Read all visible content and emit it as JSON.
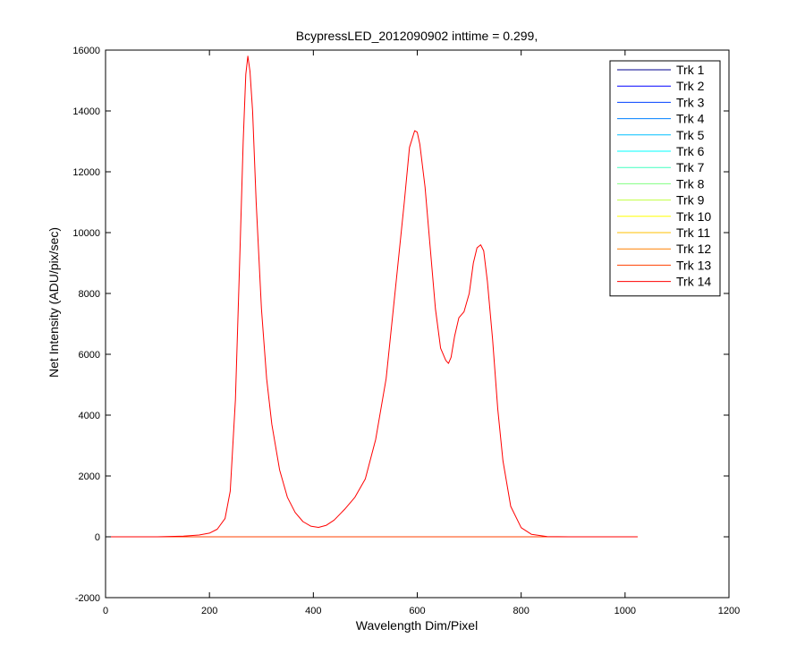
{
  "chart_data": {
    "type": "line",
    "title": "BcypressLED_2012090902 inttime = 0.299,",
    "xlabel": "Wavelength Dim/Pixel",
    "ylabel": "Net Intensity (ADU/pix/sec)",
    "xlim": [
      0,
      1200
    ],
    "ylim": [
      -2000,
      16000
    ],
    "xticks": [
      "0",
      "200",
      "400",
      "600",
      "800",
      "1000",
      "1200"
    ],
    "yticks": [
      "-2000",
      "0",
      "2000",
      "4000",
      "6000",
      "8000",
      "10000",
      "12000",
      "14000",
      "16000"
    ],
    "grid": false,
    "legend_position": "top-right",
    "series": [
      {
        "name": "Trk 1",
        "color": "#00008f",
        "x": [
          0,
          1024
        ],
        "y": [
          0,
          0
        ]
      },
      {
        "name": "Trk 2",
        "color": "#0000ff",
        "x": [
          0,
          1024
        ],
        "y": [
          0,
          0
        ]
      },
      {
        "name": "Trk 3",
        "color": "#0040ff",
        "x": [
          0,
          1024
        ],
        "y": [
          0,
          0
        ]
      },
      {
        "name": "Trk 4",
        "color": "#0080ff",
        "x": [
          0,
          1024
        ],
        "y": [
          0,
          0
        ]
      },
      {
        "name": "Trk 5",
        "color": "#00c0ff",
        "x": [
          0,
          1024
        ],
        "y": [
          0,
          0
        ]
      },
      {
        "name": "Trk 6",
        "color": "#00ffff",
        "x": [
          0,
          1024
        ],
        "y": [
          0,
          0
        ]
      },
      {
        "name": "Trk 7",
        "color": "#40ffc0",
        "x": [
          0,
          1024
        ],
        "y": [
          0,
          0
        ]
      },
      {
        "name": "Trk 8",
        "color": "#80ff80",
        "x": [
          0,
          1024
        ],
        "y": [
          0,
          0
        ]
      },
      {
        "name": "Trk 9",
        "color": "#c0ff40",
        "x": [
          0,
          1024
        ],
        "y": [
          0,
          0
        ]
      },
      {
        "name": "Trk 10",
        "color": "#ffff00",
        "x": [
          0,
          1024
        ],
        "y": [
          0,
          0
        ]
      },
      {
        "name": "Trk 11",
        "color": "#ffc000",
        "x": [
          0,
          1024
        ],
        "y": [
          0,
          0
        ]
      },
      {
        "name": "Trk 12",
        "color": "#ff8000",
        "x": [
          0,
          1024
        ],
        "y": [
          0,
          0
        ]
      },
      {
        "name": "Trk 13",
        "color": "#ff4000",
        "x": [
          0,
          1024
        ],
        "y": [
          0,
          0
        ]
      },
      {
        "name": "Trk 14",
        "color": "#ff0000",
        "x": [
          0,
          100,
          150,
          180,
          200,
          215,
          230,
          240,
          250,
          258,
          265,
          270,
          274,
          278,
          283,
          290,
          300,
          310,
          320,
          335,
          350,
          365,
          380,
          395,
          410,
          425,
          440,
          460,
          480,
          500,
          520,
          540,
          560,
          575,
          585,
          595,
          600,
          605,
          615,
          625,
          635,
          645,
          655,
          660,
          665,
          672,
          680,
          690,
          700,
          708,
          715,
          722,
          728,
          735,
          745,
          755,
          765,
          780,
          800,
          820,
          850,
          900,
          1024
        ],
        "y": [
          0,
          0,
          20,
          60,
          120,
          250,
          600,
          1500,
          4500,
          9000,
          13000,
          15200,
          15800,
          15300,
          14000,
          11000,
          7500,
          5200,
          3700,
          2200,
          1300,
          800,
          500,
          350,
          310,
          380,
          550,
          900,
          1300,
          1900,
          3200,
          5200,
          8500,
          11000,
          12800,
          13350,
          13300,
          12900,
          11500,
          9500,
          7500,
          6200,
          5800,
          5700,
          5900,
          6600,
          7200,
          7400,
          8000,
          9000,
          9500,
          9600,
          9400,
          8400,
          6500,
          4200,
          2500,
          1000,
          300,
          80,
          10,
          0,
          0
        ]
      }
    ]
  }
}
